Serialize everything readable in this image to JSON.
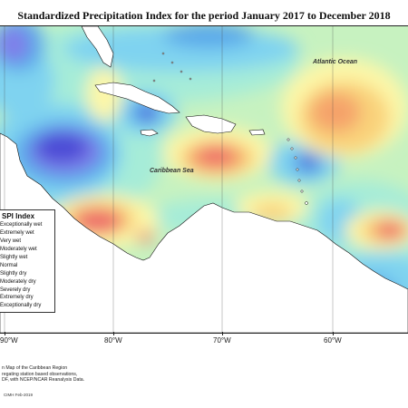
{
  "title": "Standardized Precipitation Index for the period January 2017 to December 2018",
  "labels": {
    "atlantic": "Atlantic Ocean",
    "caribbean": "Caribbean Sea"
  },
  "legend": {
    "title": "SPI Index",
    "items": [
      {
        "label": "Exceptionally wet",
        "color": "#4b4bd6"
      },
      {
        "label": "Extremely wet",
        "color": "#7f7fea"
      },
      {
        "label": "Very wet",
        "color": "#5aa9ea"
      },
      {
        "label": "Moderately wet",
        "color": "#7fd3f0"
      },
      {
        "label": "Slightly wet",
        "color": "#a6ecd8"
      },
      {
        "label": "Normal",
        "color": "#c7f2c0"
      },
      {
        "label": "Slightly dry",
        "color": "#fdf7a8"
      },
      {
        "label": "Moderately dry",
        "color": "#f9d27a"
      },
      {
        "label": "Severely dry",
        "color": "#f5a36a"
      },
      {
        "label": "Extremely dry",
        "color": "#ee6b6b"
      },
      {
        "label": "Exceptionally dry",
        "color": "#e04343"
      }
    ]
  },
  "axis": {
    "labels": [
      "90°W",
      "80°W",
      "70°W",
      "60°W"
    ]
  },
  "source_lines": [
    "n Map of the Caribbean Region",
    "regating station based observations,",
    "DF, with NCEP/NCAR Reanalysis Data."
  ],
  "credit": "CIMH Feb-2019"
}
